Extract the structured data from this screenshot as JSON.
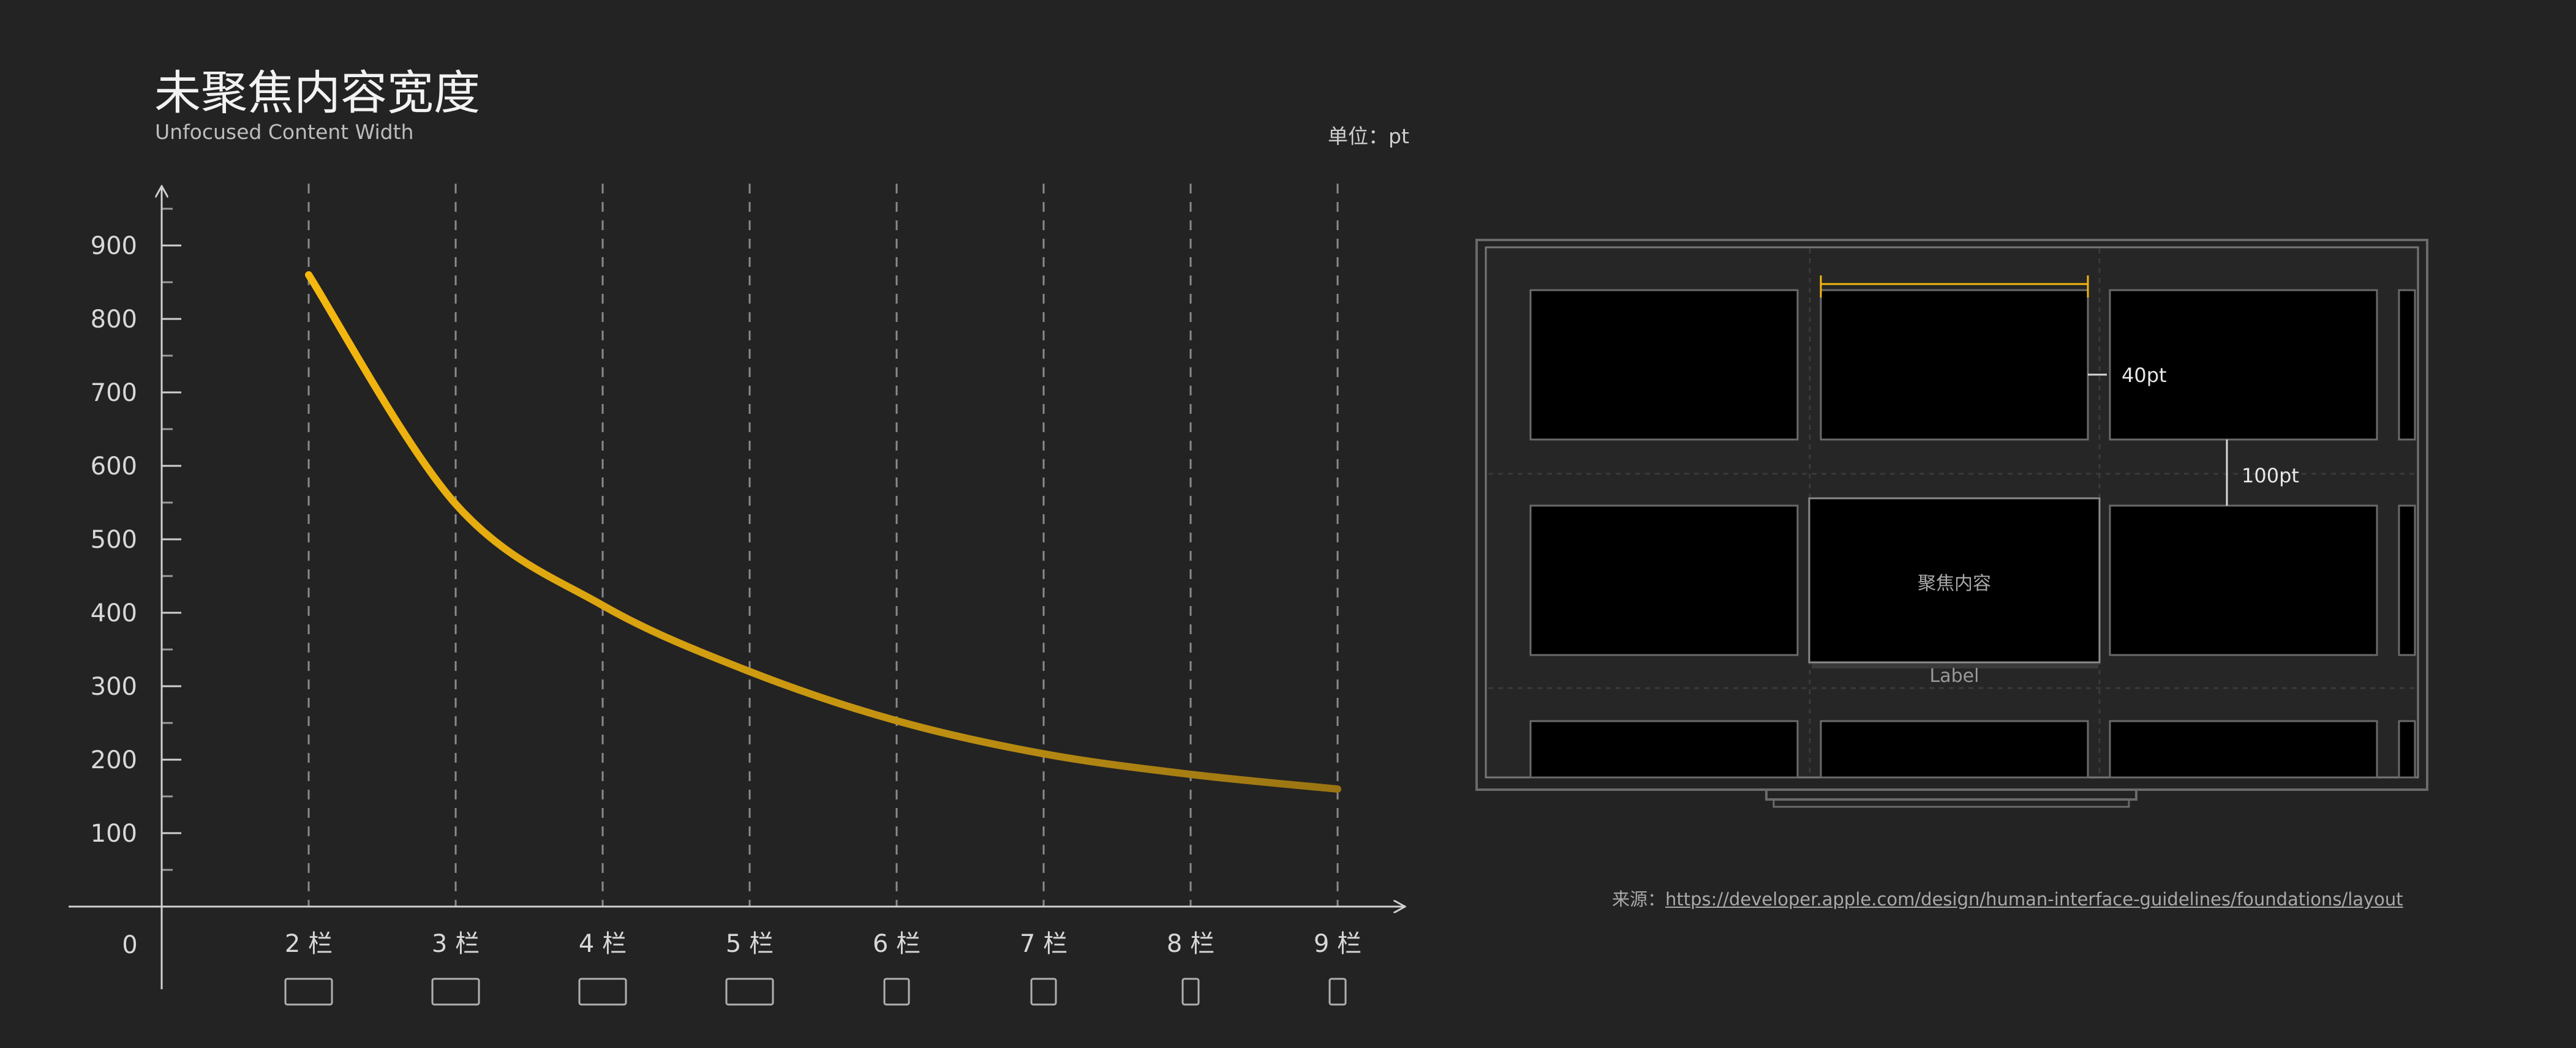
{
  "title": "未聚焦内容宽度",
  "subtitle": "Unfocused Content Width",
  "unit_label": "单位：pt",
  "chart_data": {
    "type": "line",
    "title": "未聚焦内容宽度",
    "subtitle": "Unfocused Content Width",
    "unit": "单位：pt",
    "categories": [
      "2 栏",
      "3 栏",
      "4 栏",
      "5 栏",
      "6 栏",
      "7 栏",
      "8 栏",
      "9 栏"
    ],
    "x_origin_label": "0",
    "y_tick_labels": [
      "100",
      "200",
      "300",
      "400",
      "500",
      "600",
      "700",
      "800",
      "900"
    ],
    "ylim": [
      0,
      900
    ],
    "series": [
      {
        "values": [
          860,
          548,
          410,
          320,
          253,
          208,
          180,
          160
        ],
        "color": "#f5b80f"
      }
    ],
    "grid": "vertical-dashed",
    "legend": "none"
  },
  "diagram": {
    "measure_top": "40pt",
    "measure_gap": "100pt",
    "focused_label": "聚焦内容",
    "item_label": "Label"
  },
  "source": {
    "prefix": "来源：",
    "link": "https://developer.apple.com/design/human-interface-guidelines/foundations/layout"
  },
  "colors": {
    "background": "#232323",
    "accent": "#f5b80f",
    "axis": "#d0d0d0"
  }
}
